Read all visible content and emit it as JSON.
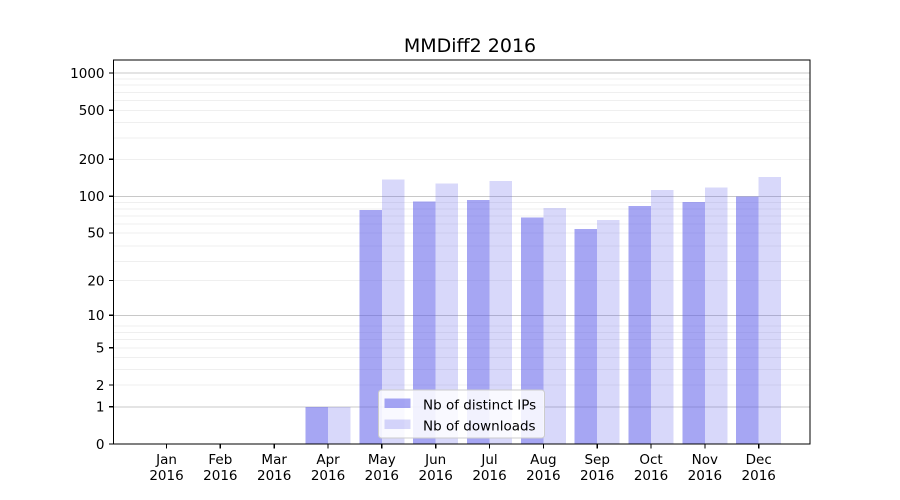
{
  "chart_data": {
    "type": "bar",
    "title": "MMDiff2 2016",
    "categories": [
      "Jan",
      "Feb",
      "Mar",
      "Apr",
      "May",
      "Jun",
      "Jul",
      "Aug",
      "Sep",
      "Oct",
      "Nov",
      "Dec"
    ],
    "x_tick_year": "2016",
    "series": [
      {
        "name": "Nb of distinct IPs",
        "color": "rgba(92,92,233,0.55)",
        "values": [
          0,
          0,
          0,
          1,
          77,
          91,
          93,
          67,
          54,
          83,
          90,
          100
        ]
      },
      {
        "name": "Nb of downloads",
        "color": "rgba(92,92,233,0.24)",
        "values": [
          0,
          0,
          0,
          1,
          137,
          127,
          133,
          80,
          64,
          113,
          118,
          143
        ]
      }
    ],
    "yscale": "log1p",
    "y_ticks": [
      0,
      1,
      2,
      5,
      10,
      20,
      50,
      100,
      200,
      500,
      1000
    ],
    "ylim": [
      0,
      1280
    ],
    "xlabel": "",
    "ylabel": "",
    "grid": "horizontal",
    "legend_position": "lower-left-of-center",
    "colors": {
      "axis": "#000000",
      "grid_major": "#c8c8c8",
      "grid_minor": "#efefef",
      "legend_bg": "rgba(255,255,255,0.85)",
      "legend_border": "#cccccc"
    }
  }
}
